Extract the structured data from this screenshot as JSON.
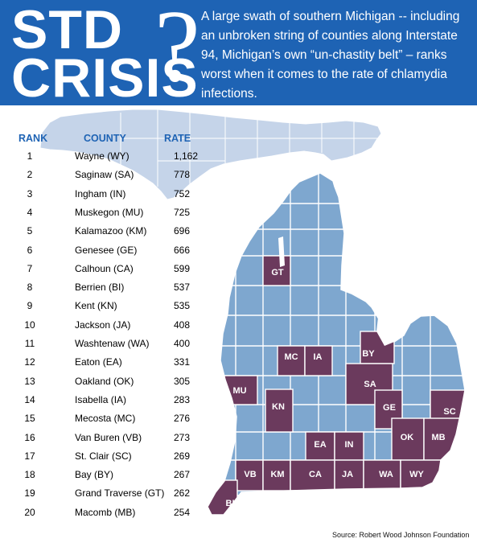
{
  "header": {
    "line1": "STD",
    "line2": "CRISIS",
    "question_mark": "?",
    "blurb": "A large swath of southern Michigan -- including an unbroken string of counties along Interstate 94, Michigan’s own “un-chastity belt” – ranks worst when it comes to the rate of chlamydia infections."
  },
  "colors": {
    "header_bg": "#1e63b4",
    "county_highlight": "#6b3a5d",
    "county_default": "#7ea7cf",
    "upper_peninsula": "#c5d4e9",
    "column_heading": "#1e63b4"
  },
  "map": {
    "highlighted_labels": [
      "GT",
      "MC",
      "IA",
      "BY",
      "MU",
      "SA",
      "KN",
      "GE",
      "SC",
      "OK",
      "MB",
      "EA",
      "IN",
      "VB",
      "KM",
      "CA",
      "JA",
      "WA",
      "WY",
      "BI"
    ]
  },
  "chart_data": {
    "type": "table",
    "columns": [
      "RANK",
      "COUNTY",
      "RATE"
    ],
    "rows": [
      {
        "rank": "1",
        "county": "Wayne (WY)",
        "rate": "1,162"
      },
      {
        "rank": "2",
        "county": "Saginaw (SA)",
        "rate": "778"
      },
      {
        "rank": "3",
        "county": "Ingham (IN)",
        "rate": "752"
      },
      {
        "rank": "4",
        "county": "Muskegon (MU)",
        "rate": "725"
      },
      {
        "rank": "5",
        "county": "Kalamazoo (KM)",
        "rate": "696"
      },
      {
        "rank": "6",
        "county": "Genesee (GE)",
        "rate": "666"
      },
      {
        "rank": "7",
        "county": "Calhoun (CA)",
        "rate": "599"
      },
      {
        "rank": "8",
        "county": "Berrien (BI)",
        "rate": "537"
      },
      {
        "rank": "9",
        "county": "Kent (KN)",
        "rate": "535"
      },
      {
        "rank": "10",
        "county": "Jackson (JA)",
        "rate": "408"
      },
      {
        "rank": "11",
        "county": "Washtenaw (WA)",
        "rate": "400"
      },
      {
        "rank": "12",
        "county": "Eaton  (EA)",
        "rate": "331"
      },
      {
        "rank": "13",
        "county": "Oakland (OK)",
        "rate": "305"
      },
      {
        "rank": "14",
        "county": "Isabella (IA)",
        "rate": "283"
      },
      {
        "rank": "15",
        "county": "Mecosta (MC)",
        "rate": "276"
      },
      {
        "rank": "16",
        "county": "Van Buren (VB)",
        "rate": "273"
      },
      {
        "rank": "17",
        "county": "St. Clair (SC)",
        "rate": "269"
      },
      {
        "rank": "18",
        "county": "Bay (BY)",
        "rate": "267"
      },
      {
        "rank": "19",
        "county": "Grand Traverse (GT)",
        "rate": "262"
      },
      {
        "rank": "20",
        "county": "Macomb (MB)",
        "rate": "254"
      }
    ]
  },
  "source": "Source: Robert Wood Johnson Foundation"
}
